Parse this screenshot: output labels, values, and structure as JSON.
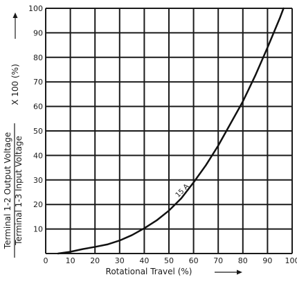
{
  "chart_data": {
    "type": "line",
    "xlabel": "Rotational Travel (%)",
    "ylabel": {
      "numerator": "Terminal 1-2 Output Voltage",
      "denominator": "Terminal 1-3 Input Voltage",
      "multiplier": "X 100 (%)"
    },
    "xlim": [
      0,
      100
    ],
    "ylim": [
      0,
      100
    ],
    "x_ticks": [
      "0",
      "10",
      "20",
      "30",
      "40",
      "50",
      "60",
      "70",
      "80",
      "90",
      "100"
    ],
    "y_ticks": [
      "10",
      "20",
      "30",
      "40",
      "50",
      "60",
      "70",
      "80",
      "90",
      "100"
    ],
    "grid": true,
    "series": [
      {
        "name": "15 A",
        "x": [
          5,
          10,
          15,
          20,
          25,
          30,
          35,
          40,
          45,
          50,
          55,
          60,
          65,
          70,
          75,
          80,
          85,
          90,
          95,
          96.5
        ],
        "y": [
          0,
          0.7,
          1.8,
          2.7,
          3.7,
          5.3,
          7.5,
          10.3,
          13.5,
          17.5,
          22.5,
          29,
          36,
          44,
          53,
          62,
          72.5,
          84,
          96,
          100
        ]
      }
    ],
    "annotations": [
      {
        "text": "15 A",
        "x": 56,
        "y": 25
      }
    ]
  }
}
